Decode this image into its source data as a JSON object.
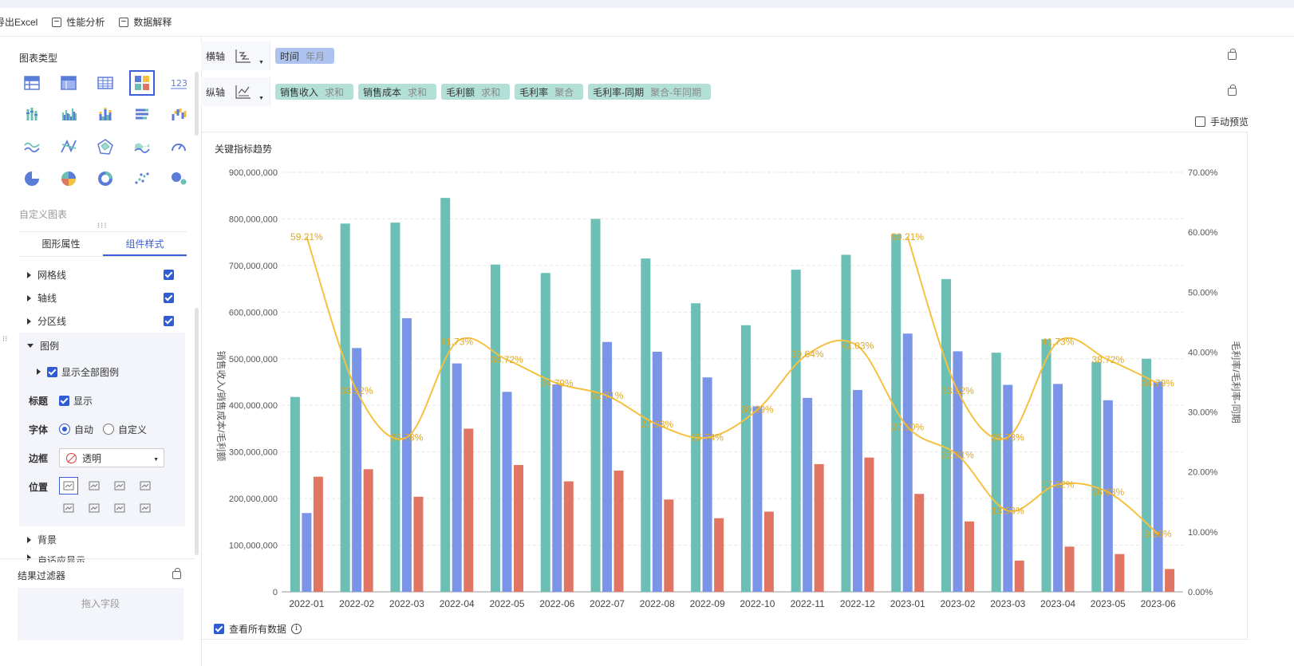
{
  "toolbar": {
    "items": [
      {
        "label": "导出Excel",
        "icon": "export-icon"
      },
      {
        "label": "性能分析",
        "icon": "performance-icon"
      },
      {
        "label": "数据解释",
        "icon": "data-explain-icon"
      }
    ]
  },
  "left_panel": {
    "chart_type_title": "图表类型",
    "custom_chart": "自定义图表",
    "chart_types": [
      "table-icon",
      "detail-table-icon",
      "cross-table-icon",
      "combo-chart-icon",
      "number-card-icon",
      "multi-bar-icon",
      "bar-chart-icon",
      "stacked-bar-icon",
      "horizontal-bar-icon",
      "waterfall-icon",
      "line-icon",
      "polar-icon",
      "radar-icon",
      "area-icon",
      "gauge-icon",
      "pie-icon",
      "multi-pie-icon",
      "donut-icon",
      "scatter-icon",
      "bubble-icon"
    ],
    "active_chart_type_index": 3,
    "tabs": [
      "图形属性",
      "组件样式"
    ],
    "active_tab": 1,
    "props": {
      "gridline": "网格线",
      "axisline": "轴线",
      "zone": "分区线",
      "legend": "图例",
      "show_all_legend": "显示全部图例",
      "title_label": "标题",
      "title_show": "显示",
      "font_label": "字体",
      "font_auto": "自动",
      "font_custom": "自定义",
      "border_label": "边框",
      "border_value": "透明",
      "position_label": "位置",
      "background": "背景",
      "adaptive": "自适应显示"
    },
    "filter": {
      "title": "结果过滤器",
      "drop_hint": "拖入字段"
    }
  },
  "axes": {
    "x": {
      "label": "横轴",
      "fields": [
        {
          "name": "时间",
          "agg": "年月"
        }
      ]
    },
    "y": {
      "label": "纵轴",
      "fields": [
        {
          "name": "销售收入",
          "agg": "求和"
        },
        {
          "name": "销售成本",
          "agg": "求和"
        },
        {
          "name": "毛利额",
          "agg": "求和"
        },
        {
          "name": "毛利率",
          "agg": "聚合"
        },
        {
          "name": "毛利率-同期",
          "agg": "聚合-年同期"
        }
      ]
    }
  },
  "manual_preview": "手动预览",
  "view_all_data": "查看所有数据",
  "colors": {
    "revenue": "#6bbfb4",
    "cost": "#7a95e8",
    "profit": "#e17563",
    "rate": "#f6c140",
    "accent": "#3b5fd6"
  },
  "chart_data": {
    "type": "bar",
    "title": "关键指标趋势",
    "categories": [
      "2022-01",
      "2022-02",
      "2022-03",
      "2022-04",
      "2022-05",
      "2022-06",
      "2022-07",
      "2022-08",
      "2022-09",
      "2022-10",
      "2022-11",
      "2022-12",
      "2023-01",
      "2023-02",
      "2023-03",
      "2023-04",
      "2023-05",
      "2023-06"
    ],
    "ylabel": "销售收入/销售成本/毛利额",
    "y2label": "毛利率/毛利率-同期",
    "ylim": [
      0,
      900000000
    ],
    "y2lim": [
      0,
      0.7
    ],
    "yticks": [
      "0",
      "100,000,000",
      "200,000,000",
      "300,000,000",
      "400,000,000",
      "500,000,000",
      "600,000,000",
      "700,000,000",
      "800,000,000",
      "900,000,000"
    ],
    "y2ticks": [
      "0.00%",
      "10.00%",
      "20.00%",
      "30.00%",
      "40.00%",
      "50.00%",
      "60.00%",
      "70.00%"
    ],
    "grid": true,
    "bar_series": [
      {
        "color": "#6bbfb4",
        "values": [
          418000000,
          790000000,
          792000000,
          845000000,
          702000000,
          684000000,
          800000000,
          715000000,
          619000000,
          572000000,
          691000000,
          723000000,
          767000000,
          671000000,
          513000000,
          542000000,
          493000000,
          500000000
        ]
      },
      {
        "color": "#7a95e8",
        "values": [
          169000000,
          523000000,
          587000000,
          490000000,
          429000000,
          445000000,
          536000000,
          515000000,
          460000000,
          398000000,
          416000000,
          433000000,
          554000000,
          516000000,
          444000000,
          446000000,
          411000000,
          451000000
        ]
      },
      {
        "color": "#e17563",
        "values": [
          247000000,
          263000000,
          204000000,
          350000000,
          272000000,
          237000000,
          260000000,
          198000000,
          158000000,
          172000000,
          274000000,
          288000000,
          210000000,
          151000000,
          67000000,
          97000000,
          81000000,
          49000000
        ]
      }
    ],
    "line_series": [
      {
        "color": "#f6c140",
        "x_start": 0,
        "values": [
          0.5921,
          0.3352,
          0.2578,
          0.4173,
          0.3872,
          0.3479,
          0.3271,
          0.2793,
          0.2574,
          0.3039,
          0.3964,
          0.4103,
          0.275,
          0.2281,
          0.1353,
          0.1792,
          0.1663,
          0.0966
        ]
      },
      {
        "color": "#f6c140",
        "x_start": 12,
        "values": [
          0.5921,
          0.3352,
          0.2578,
          0.4173,
          0.3872,
          0.3479
        ]
      }
    ],
    "data_labels": [
      {
        "x": 0,
        "text": "59.21%"
      },
      {
        "x": 1,
        "text": "33.52%"
      },
      {
        "x": 2,
        "text": "25.78%"
      },
      {
        "x": 3,
        "text": "41.73%"
      },
      {
        "x": 4,
        "text": "38.72%"
      },
      {
        "x": 5,
        "text": "34.79%"
      },
      {
        "x": 6,
        "text": "32.71%"
      },
      {
        "x": 7,
        "text": "27.93%"
      },
      {
        "x": 8,
        "text": "25.74%"
      },
      {
        "x": 9,
        "text": "30.39%"
      },
      {
        "x": 10,
        "text": "39.64%"
      },
      {
        "x": 11,
        "text": "41.03%"
      },
      {
        "x": 12,
        "text": "27.50%"
      },
      {
        "x": 13,
        "text": "22.81%"
      },
      {
        "x": 14,
        "text": "13.53%"
      },
      {
        "x": 15,
        "text": "17.92%"
      },
      {
        "x": 16,
        "text": "16.63%"
      },
      {
        "x": 17,
        "text": "9.66%"
      },
      {
        "x": 12,
        "text": "59.21%"
      },
      {
        "x": 13,
        "text": "33.52%"
      },
      {
        "x": 14,
        "text": "25.78%"
      },
      {
        "x": 15,
        "text": "41.73%"
      },
      {
        "x": 16,
        "text": "38.72%"
      },
      {
        "x": 17,
        "text": "34.79%"
      }
    ]
  }
}
